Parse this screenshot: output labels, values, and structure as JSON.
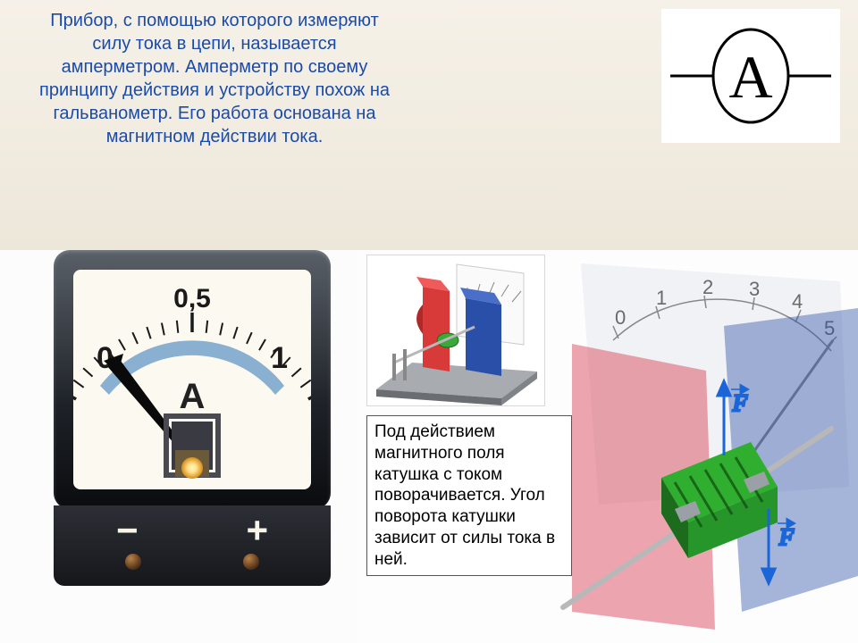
{
  "header": {
    "text": "Прибор, с помощью которого измеряют силу тока в цепи, называется амперметром. Амперметр по своему принципу действия и устройству похож на гальванометр. Его работа основана на магнитном действии тока.",
    "text_color": "#1a4ba8",
    "font_size": 20,
    "bg_gradient": [
      "#f6f1e8",
      "#ede7da"
    ]
  },
  "symbol": {
    "letter": "A",
    "letter_font_family": "Times New Roman, serif",
    "letter_font_size": 68,
    "circle_stroke": "#000000",
    "circle_stroke_width": 3,
    "wire_color": "#000000"
  },
  "ammeter": {
    "case_gradient": [
      "#5a6068",
      "#1e2228",
      "#0a0c0f"
    ],
    "face_bg": "#fcf9f0",
    "scale": {
      "min_label": "0",
      "mid_label": "0,5",
      "max_label": "1",
      "label_color": "#1a1a1a",
      "label_font_size": 34,
      "mid_label_font_size": 30,
      "tick_color": "#1a1a1a",
      "major_ticks": 3,
      "minor_ticks": 20,
      "arc_start_deg": 210,
      "arc_end_deg": 330
    },
    "unit_letter": "A",
    "unit_font_size": 40,
    "unit_color": "#222222",
    "arc_band_color": "#6b9cc9",
    "needle": {
      "color": "#0a0a0a",
      "angle_deg": 210,
      "width": 8
    },
    "coil_window": {
      "frame_color": "#4a4a52",
      "glow_color_inner": "#ffe38a",
      "glow_color_outer": "#d78a1a"
    },
    "terminals": {
      "neg_sign": "−",
      "pos_sign": "+",
      "sign_color": "#f8f4e8",
      "knob_gradient": [
        "#b8834a",
        "#5a3618",
        "#2c1807"
      ]
    }
  },
  "inset_3d": {
    "base_color": "#8a8f94",
    "magnet_red": "#d83a3a",
    "magnet_blue": "#2a4fa8",
    "coil_color": "#3aa83a",
    "scale_bg": "#ffffff"
  },
  "big_3d": {
    "magnet_red_transparent": "rgba(214,58,78,0.45)",
    "magnet_blue_transparent": "rgba(42,79,168,0.42)",
    "coil_segments_color": "#2fae2f",
    "coil_dark": "#1d6b1d",
    "shaft_color": "#b8b8b8",
    "force_arrow_color": "#1a66d8",
    "force_label": "F",
    "dial_numbers": [
      "0",
      "1",
      "2",
      "3",
      "4",
      "5"
    ],
    "dial_number_color": "#6a6a6a",
    "dial_tick_color": "#888888",
    "panel_bg": "rgba(230,234,238,0.55)"
  },
  "caption": {
    "text": "Под действием магнитного поля катушка с током поворачивается. Угол поворота катушки зависит от силы тока в ней.",
    "font_size": 19,
    "border_color": "#555555",
    "bg": "#ffffff"
  }
}
